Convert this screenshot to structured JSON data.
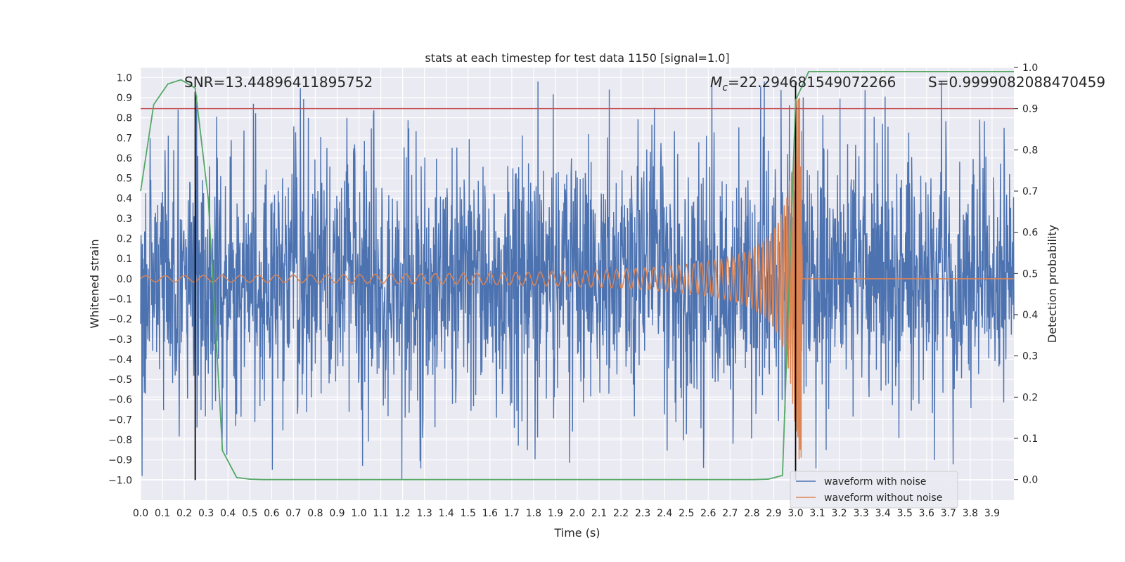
{
  "chart_data": {
    "type": "line",
    "title": "stats at each timestep for test data 1150 [signal=1.0]",
    "xlabel": "Time (s)",
    "ylabel": "Whitened strain",
    "y2label": "Detection probability",
    "xlim": [
      0.0,
      4.0
    ],
    "ylim": [
      -1.1,
      1.05
    ],
    "y2lim": [
      -0.05,
      1.0
    ],
    "x_ticks": [
      "0.0",
      "0.1",
      "0.2",
      "0.3",
      "0.4",
      "0.5",
      "0.6",
      "0.7",
      "0.8",
      "0.9",
      "1.0",
      "1.1",
      "1.2",
      "1.3",
      "1.4",
      "1.5",
      "1.6",
      "1.7",
      "1.8",
      "1.9",
      "2.0",
      "2.1",
      "2.2",
      "2.3",
      "2.4",
      "2.5",
      "2.6",
      "2.7",
      "2.8",
      "2.9",
      "3.0",
      "3.1",
      "3.2",
      "3.3",
      "3.4",
      "3.5",
      "3.6",
      "3.7",
      "3.8",
      "3.9"
    ],
    "y_ticks": [
      "1.0",
      "0.9",
      "0.8",
      "0.7",
      "0.6",
      "0.5",
      "0.4",
      "0.3",
      "0.2",
      "0.1",
      "0.0",
      "−0.1",
      "−0.2",
      "−0.3",
      "−0.4",
      "−0.5",
      "−0.6",
      "−0.7",
      "−0.8",
      "−0.9",
      "−1.0"
    ],
    "y2_ticks": [
      "1.0",
      "0.9",
      "0.8",
      "0.7",
      "0.6",
      "0.5",
      "0.4",
      "0.3",
      "0.2",
      "0.1",
      "0.0"
    ],
    "annotations": {
      "snr": "SNR=13.44896411895752",
      "mc_symbol": "M",
      "mc_sub": "c",
      "mc_value": "=22.294681549072266",
      "s": "S=0.9999082088470459"
    },
    "threshold": {
      "axis": "y2",
      "value": 0.9,
      "color": "#c44e52"
    },
    "vlines": [
      {
        "x": 0.25,
        "y_from": -1.0,
        "y_to": 0.93
      },
      {
        "x": 3.0,
        "y_from": -1.0,
        "y_to": 0.98
      }
    ],
    "legend": {
      "position": "lower-right",
      "entries": [
        {
          "label": "waveform with noise",
          "color": "#4c72b0"
        },
        {
          "label": "waveform without noise",
          "color": "#dd8452"
        }
      ]
    },
    "series": [
      {
        "name": "waveform with noise",
        "color": "#4c72b0",
        "kind": "noise",
        "description_x_range": [
          0.0,
          4.0
        ],
        "typical_amplitude": 0.4,
        "peak_amplitude": 0.98
      },
      {
        "name": "waveform without noise",
        "color": "#dd8452",
        "kind": "chirp",
        "merger_time": 3.0,
        "start_amplitude": 0.015,
        "peak_amplitude": 0.9,
        "post_merger_value": 0.0
      },
      {
        "name": "detection probability",
        "color": "#55a868",
        "axis": "y2",
        "x": [
          0.0,
          0.06,
          0.125,
          0.185,
          0.25,
          0.31,
          0.375,
          0.44,
          0.5,
          0.56,
          0.625,
          0.69,
          0.75,
          0.81,
          0.875,
          0.94,
          1.0,
          1.25,
          1.5,
          1.75,
          2.0,
          2.25,
          2.5,
          2.75,
          2.81,
          2.875,
          2.94,
          3.0,
          3.06,
          3.125,
          3.25,
          3.5,
          3.75,
          4.0
        ],
        "y": [
          0.7,
          0.91,
          0.96,
          0.97,
          0.95,
          0.68,
          0.07,
          0.005,
          0.001,
          0.0,
          0.0,
          0.0,
          0.0,
          0.0,
          0.0,
          0.0,
          0.0,
          0.0,
          0.0,
          0.0,
          0.0,
          0.0,
          0.0,
          0.0,
          0.0,
          0.001,
          0.01,
          0.92,
          0.99,
          0.99,
          0.99,
          0.99,
          0.99,
          0.99
        ]
      }
    ]
  }
}
